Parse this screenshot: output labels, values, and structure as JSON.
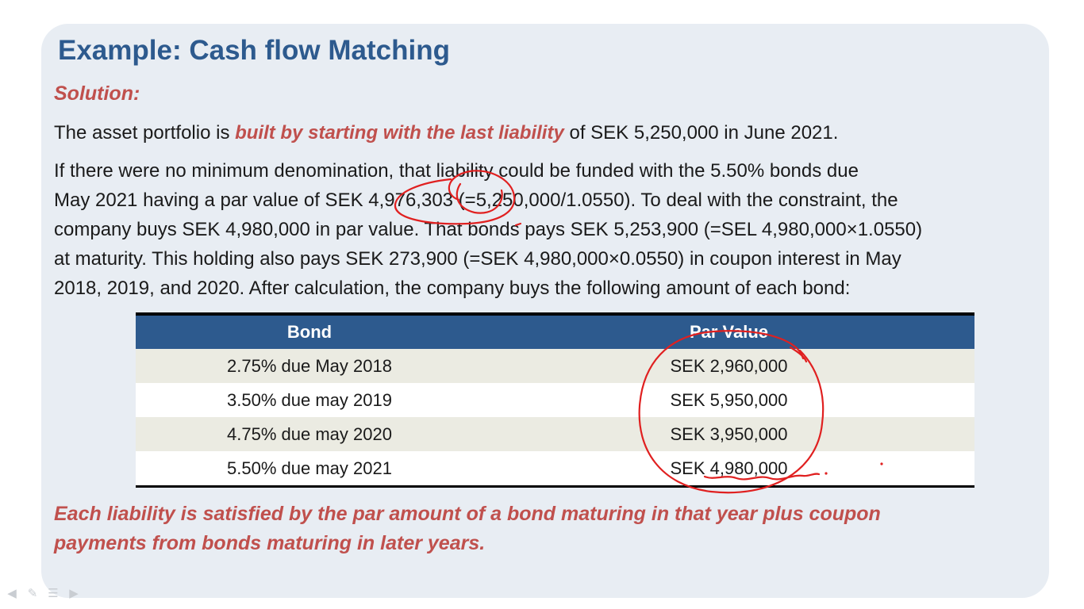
{
  "title": "Example: Cash flow Matching",
  "solution_label": "Solution:",
  "para1": {
    "before": "The asset portfolio is ",
    "highlight": "built by starting with the last liability",
    "after": " of SEK 5,250,000 in June 2021."
  },
  "para2_lines": [
    "If there were no minimum denomination, that liability could be funded with the 5.50% bonds due",
    "May 2021 having a par value of SEK 4,976,303 (=5,250,000/1.0550). To deal with the constraint, the",
    "company buys SEK 4,980,000 in par value. That bonds pays SEK 5,253,900 (=SEL 4,980,000×1.0550)",
    "at maturity. This holding also pays SEK 273,900 (=SEK 4,980,000×0.0550) in coupon interest in May",
    "2018, 2019, and 2020. After calculation, the company buys the following amount of each bond:"
  ],
  "table": {
    "headers": [
      "Bond",
      "Par Value"
    ],
    "rows": [
      [
        "2.75% due May 2018",
        "SEK 2,960,000"
      ],
      [
        "3.50% due may 2019",
        "SEK 5,950,000"
      ],
      [
        "4.75% due may 2020",
        "SEK 3,950,000"
      ],
      [
        "5.50% due may 2021",
        "SEK 4,980,000"
      ]
    ]
  },
  "conclusion_lines": [
    "Each liability is satisfied by the par amount of a bond maturing in that year plus coupon",
    "payments from bonds maturing in later years."
  ],
  "colors": {
    "title": "#2d5a8e",
    "accent_red": "#c0504d",
    "header_bg": "#2d5a8e",
    "row_alt": "#ebebe2",
    "slide_bg": "#e8edf3",
    "ink": "#e02020"
  },
  "navigation_icons": [
    "previous-arrow-icon",
    "pen-icon",
    "menu-icon",
    "next-arrow-icon"
  ]
}
